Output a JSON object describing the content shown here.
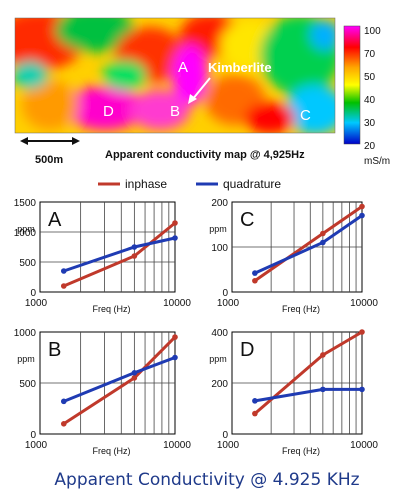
{
  "caption": "Apparent Conductivity @ 4.925 KHz",
  "map": {
    "subtitle": "Apparent conductivity map @ 4,925Hz",
    "scale_bar_label": "500m",
    "feature_label": "Kimberlite",
    "site_labels": [
      "A",
      "B",
      "C",
      "D"
    ],
    "colorbar": {
      "ticks": [
        100,
        70,
        50,
        40,
        30,
        20
      ],
      "unit": "mS/m",
      "colors": [
        "#ff00ff",
        "#ff0000",
        "#ffa500",
        "#ffff00",
        "#00c000",
        "#00c8ff",
        "#0000c8"
      ]
    },
    "colors": {
      "text": "#111111",
      "label_white": "#ffffff"
    }
  },
  "legend": {
    "entries": [
      {
        "name": "inphase",
        "color": "#c0392b"
      },
      {
        "name": "quadrature",
        "color": "#1f3bb3"
      }
    ],
    "placement": "top-center"
  },
  "chart_data": [
    {
      "type": "line",
      "panel_label": "A",
      "xlabel": "Freq (Hz)",
      "ylabel": "ppm",
      "xscale": "log",
      "xlim": [
        1000,
        10000
      ],
      "ylim": [
        0,
        1500
      ],
      "x_ticks": [
        1000,
        10000
      ],
      "y_ticks": [
        0,
        500,
        1000,
        1500
      ],
      "grid": true,
      "x": [
        1500,
        5000,
        10000
      ],
      "series": [
        {
          "name": "inphase",
          "color": "#c0392b",
          "values": [
            100,
            600,
            1150
          ]
        },
        {
          "name": "quadrature",
          "color": "#1f3bb3",
          "values": [
            350,
            750,
            900
          ]
        }
      ]
    },
    {
      "type": "line",
      "panel_label": "C",
      "xlabel": "Freq (Hz)",
      "ylabel": "ppm",
      "xscale": "log",
      "xlim": [
        1000,
        10000
      ],
      "ylim": [
        0,
        200
      ],
      "x_ticks": [
        1000,
        10000
      ],
      "y_ticks": [
        0,
        100,
        200
      ],
      "grid": true,
      "x": [
        1500,
        5000,
        10000
      ],
      "series": [
        {
          "name": "inphase",
          "color": "#c0392b",
          "values": [
            25,
            130,
            190
          ]
        },
        {
          "name": "quadrature",
          "color": "#1f3bb3",
          "values": [
            42,
            110,
            170
          ]
        }
      ]
    },
    {
      "type": "line",
      "panel_label": "B",
      "xlabel": "Freq (Hz)",
      "ylabel": "ppm",
      "xscale": "log",
      "xlim": [
        1000,
        10000
      ],
      "ylim": [
        0,
        1000
      ],
      "x_ticks": [
        1000,
        10000
      ],
      "y_ticks": [
        0,
        500,
        1000
      ],
      "grid": true,
      "x": [
        1500,
        5000,
        10000
      ],
      "series": [
        {
          "name": "inphase",
          "color": "#c0392b",
          "values": [
            100,
            550,
            950
          ]
        },
        {
          "name": "quadrature",
          "color": "#1f3bb3",
          "values": [
            320,
            600,
            750
          ]
        }
      ]
    },
    {
      "type": "line",
      "panel_label": "D",
      "xlabel": "Freq (Hz)",
      "ylabel": "ppm",
      "xscale": "log",
      "xlim": [
        1000,
        10000
      ],
      "ylim": [
        0,
        400
      ],
      "x_ticks": [
        1000,
        10000
      ],
      "y_ticks": [
        0,
        200,
        400
      ],
      "grid": true,
      "x": [
        1500,
        5000,
        10000
      ],
      "series": [
        {
          "name": "inphase",
          "color": "#c0392b",
          "values": [
            80,
            310,
            400
          ]
        },
        {
          "name": "quadrature",
          "color": "#1f3bb3",
          "values": [
            130,
            175,
            175
          ]
        }
      ]
    }
  ]
}
